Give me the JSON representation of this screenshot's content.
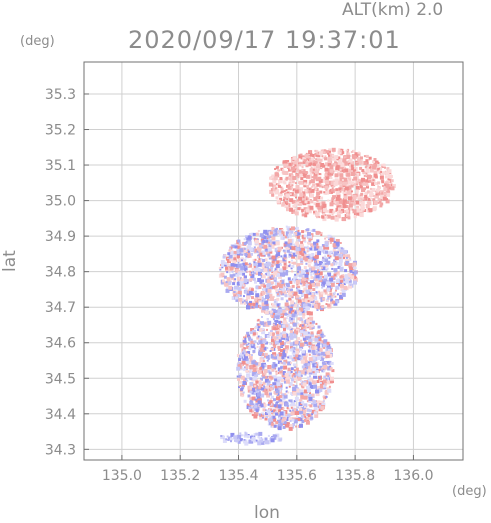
{
  "header": {
    "altitude_label": "ALT(km) 2.0",
    "timestamp": "2020/09/17 19:37:01"
  },
  "axes": {
    "y_unit": "(deg)",
    "x_unit": "(deg)",
    "y_label": "lat",
    "x_label": "lon"
  },
  "chart_data": {
    "type": "heatmap",
    "title": "2020/09/17 19:37:01",
    "xlabel": "lon",
    "ylabel": "lat",
    "xlim": [
      134.87,
      136.17
    ],
    "ylim": [
      34.27,
      35.39
    ],
    "grid": true,
    "x_ticks": [
      "135.0",
      "135.2",
      "135.4",
      "135.6",
      "135.8",
      "136.0"
    ],
    "y_ticks": [
      "34.3",
      "34.4",
      "34.5",
      "34.6",
      "34.7",
      "34.8",
      "34.9",
      "35.0",
      "35.1",
      "35.2",
      "35.3"
    ],
    "colors": {
      "positive": "#f08080",
      "negative": "#8080f0",
      "grid": "#d0d0d0",
      "frame": "#707070"
    },
    "regions": [
      {
        "name": "north-east cluster",
        "lon": [
          135.5,
          135.93
        ],
        "lat": [
          34.95,
          35.15
        ],
        "tone": "positive"
      },
      {
        "name": "central band",
        "lon": [
          135.33,
          135.8
        ],
        "lat": [
          34.68,
          34.93
        ],
        "tone": "mixed"
      },
      {
        "name": "southern dense cluster",
        "lon": [
          135.39,
          135.72
        ],
        "lat": [
          34.36,
          34.7
        ],
        "tone": "mixed"
      },
      {
        "name": "south-west streak",
        "lon": [
          135.33,
          135.55
        ],
        "lat": [
          34.32,
          34.35
        ],
        "tone": "negative"
      }
    ]
  }
}
